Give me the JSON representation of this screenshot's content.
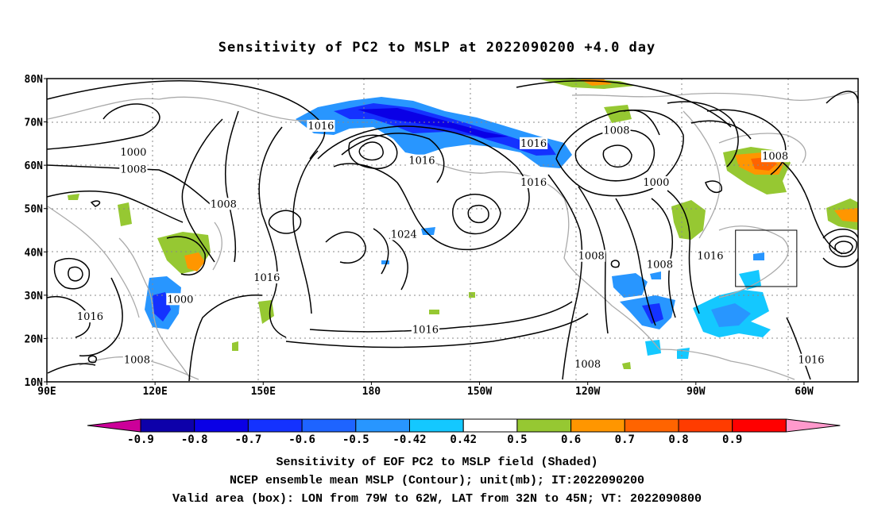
{
  "title": "Sensitivity of PC2 to MSLP at 2022090200 +4.0 day",
  "axes": {
    "lat_ticks": [
      "80N",
      "70N",
      "60N",
      "50N",
      "40N",
      "30N",
      "20N",
      "10N"
    ],
    "lon_ticks": [
      "90E",
      "120E",
      "150E",
      "180",
      "150W",
      "120W",
      "90W",
      "60W"
    ],
    "lon_range": [
      "90E",
      "45W"
    ],
    "lat_range": [
      "10N",
      "80N"
    ],
    "grid": "dotted"
  },
  "contour_labels": [
    {
      "text": "1016",
      "lon": 166,
      "lat": 69
    },
    {
      "text": "1000",
      "lon": 114,
      "lat": 63
    },
    {
      "text": "1008",
      "lon": 114,
      "lat": 59
    },
    {
      "text": "1008",
      "lon": 139,
      "lat": 51
    },
    {
      "text": "1016",
      "lon": -166,
      "lat": 61
    },
    {
      "text": "1016",
      "lon": -135,
      "lat": 65
    },
    {
      "text": "1008",
      "lon": -112,
      "lat": 68
    },
    {
      "text": "1016",
      "lon": -135,
      "lat": 56
    },
    {
      "text": "1000",
      "lon": -101,
      "lat": 56
    },
    {
      "text": "1008",
      "lon": -68,
      "lat": 62
    },
    {
      "text": "1024",
      "lon": -171,
      "lat": 44
    },
    {
      "text": "1008",
      "lon": -119,
      "lat": 39
    },
    {
      "text": "1008",
      "lon": -100,
      "lat": 37
    },
    {
      "text": "1016",
      "lon": -86,
      "lat": 39
    },
    {
      "text": "1016",
      "lon": 151,
      "lat": 34
    },
    {
      "text": "1000",
      "lon": 127,
      "lat": 29
    },
    {
      "text": "1016",
      "lon": 102,
      "lat": 25
    },
    {
      "text": "1016",
      "lon": -165,
      "lat": 22
    },
    {
      "text": "1008",
      "lon": 115,
      "lat": 15
    },
    {
      "text": "1008",
      "lon": -120,
      "lat": 14
    },
    {
      "text": "1016",
      "lon": -58,
      "lat": 15
    }
  ],
  "valid_box": {
    "lon_min": -79,
    "lon_max": -62,
    "lat_min": 32,
    "lat_max": 45
  },
  "colorbar": {
    "labels": [
      "-0.9",
      "-0.8",
      "-0.7",
      "-0.6",
      "-0.5",
      "-0.42",
      "0.42",
      "0.5",
      "0.6",
      "0.7",
      "0.8",
      "0.9"
    ],
    "colors": [
      "#0d00aa",
      "#0a00e6",
      "#1432ff",
      "#1e64ff",
      "#2896ff",
      "#14c8ff",
      "#ffffff",
      "#96c832",
      "#ff9600",
      "#ff6400",
      "#ff3c00",
      "#ff0000"
    ],
    "under_color": "#cc0099",
    "over_color": "#ff99cc"
  },
  "captions": [
    "Sensitivity of EOF PC2 to MSLP field (Shaded)",
    "NCEP ensemble mean MSLP (Contour); unit(mb); IT:2022090200",
    "Valid area (box): LON from 79W to 62W, LAT from 32N to 45N; VT: 2022090800"
  ]
}
